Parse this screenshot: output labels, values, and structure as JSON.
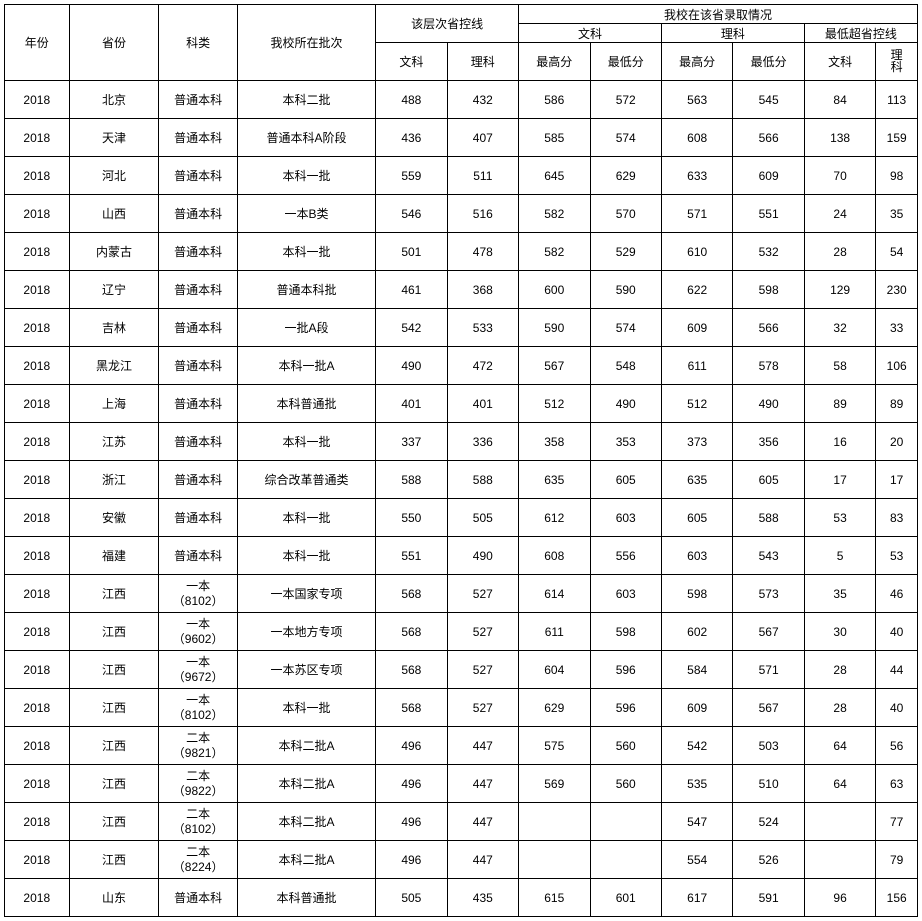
{
  "header": {
    "year": "年份",
    "province": "省份",
    "subject_type": "科类",
    "batch": "我校所在批次",
    "control_line": "该层次省控线",
    "admission_group": "我校在该省录取情况",
    "wen": "文科",
    "li": "理科",
    "high": "最高分",
    "low": "最低分",
    "over_line": "最低超省控线",
    "li_vert1": "理",
    "li_vert2": "科"
  },
  "rows": [
    {
      "year": "2018",
      "prov": "北京",
      "type": "普通本科",
      "batch": "本科二批",
      "cw": "488",
      "cl": "432",
      "wh": "586",
      "wl": "572",
      "lh": "563",
      "ll": "545",
      "ow": "84",
      "ol": "113"
    },
    {
      "year": "2018",
      "prov": "天津",
      "type": "普通本科",
      "batch": "普通本科A阶段",
      "cw": "436",
      "cl": "407",
      "wh": "585",
      "wl": "574",
      "lh": "608",
      "ll": "566",
      "ow": "138",
      "ol": "159"
    },
    {
      "year": "2018",
      "prov": "河北",
      "type": "普通本科",
      "batch": "本科一批",
      "cw": "559",
      "cl": "511",
      "wh": "645",
      "wl": "629",
      "lh": "633",
      "ll": "609",
      "ow": "70",
      "ol": "98"
    },
    {
      "year": "2018",
      "prov": "山西",
      "type": "普通本科",
      "batch": "一本B类",
      "cw": "546",
      "cl": "516",
      "wh": "582",
      "wl": "570",
      "lh": "571",
      "ll": "551",
      "ow": "24",
      "ol": "35"
    },
    {
      "year": "2018",
      "prov": "内蒙古",
      "type": "普通本科",
      "batch": "本科一批",
      "cw": "501",
      "cl": "478",
      "wh": "582",
      "wl": "529",
      "lh": "610",
      "ll": "532",
      "ow": "28",
      "ol": "54"
    },
    {
      "year": "2018",
      "prov": "辽宁",
      "type": "普通本科",
      "batch": "普通本科批",
      "cw": "461",
      "cl": "368",
      "wh": "600",
      "wl": "590",
      "lh": "622",
      "ll": "598",
      "ow": "129",
      "ol": "230"
    },
    {
      "year": "2018",
      "prov": "吉林",
      "type": "普通本科",
      "batch": "一批A段",
      "cw": "542",
      "cl": "533",
      "wh": "590",
      "wl": "574",
      "lh": "609",
      "ll": "566",
      "ow": "32",
      "ol": "33"
    },
    {
      "year": "2018",
      "prov": "黑龙江",
      "type": "普通本科",
      "batch": "本科一批A",
      "cw": "490",
      "cl": "472",
      "wh": "567",
      "wl": "548",
      "lh": "611",
      "ll": "578",
      "ow": "58",
      "ol": "106"
    },
    {
      "year": "2018",
      "prov": "上海",
      "type": "普通本科",
      "batch": "本科普通批",
      "cw": "401",
      "cl": "401",
      "wh": "512",
      "wl": "490",
      "lh": "512",
      "ll": "490",
      "ow": "89",
      "ol": "89"
    },
    {
      "year": "2018",
      "prov": "江苏",
      "type": "普通本科",
      "batch": "本科一批",
      "cw": "337",
      "cl": "336",
      "wh": "358",
      "wl": "353",
      "lh": "373",
      "ll": "356",
      "ow": "16",
      "ol": "20"
    },
    {
      "year": "2018",
      "prov": "浙江",
      "type": "普通本科",
      "batch": "综合改革普通类",
      "cw": "588",
      "cl": "588",
      "wh": "635",
      "wl": "605",
      "lh": "635",
      "ll": "605",
      "ow": "17",
      "ol": "17"
    },
    {
      "year": "2018",
      "prov": "安徽",
      "type": "普通本科",
      "batch": "本科一批",
      "cw": "550",
      "cl": "505",
      "wh": "612",
      "wl": "603",
      "lh": "605",
      "ll": "588",
      "ow": "53",
      "ol": "83"
    },
    {
      "year": "2018",
      "prov": "福建",
      "type": "普通本科",
      "batch": "本科一批",
      "cw": "551",
      "cl": "490",
      "wh": "608",
      "wl": "556",
      "lh": "603",
      "ll": "543",
      "ow": "5",
      "ol": "53"
    },
    {
      "year": "2018",
      "prov": "江西",
      "type": "一本\n（8102）",
      "batch": "一本国家专项",
      "cw": "568",
      "cl": "527",
      "wh": "614",
      "wl": "603",
      "lh": "598",
      "ll": "573",
      "ow": "35",
      "ol": "46"
    },
    {
      "year": "2018",
      "prov": "江西",
      "type": "一本\n（9602）",
      "batch": "一本地方专项",
      "cw": "568",
      "cl": "527",
      "wh": "611",
      "wl": "598",
      "lh": "602",
      "ll": "567",
      "ow": "30",
      "ol": "40"
    },
    {
      "year": "2018",
      "prov": "江西",
      "type": "一本\n（9672）",
      "batch": "一本苏区专项",
      "cw": "568",
      "cl": "527",
      "wh": "604",
      "wl": "596",
      "lh": "584",
      "ll": "571",
      "ow": "28",
      "ol": "44"
    },
    {
      "year": "2018",
      "prov": "江西",
      "type": "一本\n（8102）",
      "batch": "本科一批",
      "cw": "568",
      "cl": "527",
      "wh": "629",
      "wl": "596",
      "lh": "609",
      "ll": "567",
      "ow": "28",
      "ol": "40"
    },
    {
      "year": "2018",
      "prov": "江西",
      "type": "二本\n（9821）",
      "batch": "本科二批A",
      "cw": "496",
      "cl": "447",
      "wh": "575",
      "wl": "560",
      "lh": "542",
      "ll": "503",
      "ow": "64",
      "ol": "56"
    },
    {
      "year": "2018",
      "prov": "江西",
      "type": "二本\n（9822）",
      "batch": "本科二批A",
      "cw": "496",
      "cl": "447",
      "wh": "569",
      "wl": "560",
      "lh": "535",
      "ll": "510",
      "ow": "64",
      "ol": "63"
    },
    {
      "year": "2018",
      "prov": "江西",
      "type": "二本\n（8102）",
      "batch": "本科二批A",
      "cw": "496",
      "cl": "447",
      "wh": "",
      "wl": "",
      "lh": "547",
      "ll": "524",
      "ow": "",
      "ol": "77"
    },
    {
      "year": "2018",
      "prov": "江西",
      "type": "二本\n（8224）",
      "batch": "本科二批A",
      "cw": "496",
      "cl": "447",
      "wh": "",
      "wl": "",
      "lh": "554",
      "ll": "526",
      "ow": "",
      "ol": "79"
    },
    {
      "year": "2018",
      "prov": "山东",
      "type": "普通本科",
      "batch": "本科普通批",
      "cw": "505",
      "cl": "435",
      "wh": "615",
      "wl": "601",
      "lh": "617",
      "ll": "591",
      "ow": "96",
      "ol": "156"
    }
  ],
  "columns": [
    "year",
    "prov",
    "type",
    "batch",
    "cw",
    "cl",
    "wh",
    "wl",
    "lh",
    "ll",
    "ow",
    "ol"
  ]
}
